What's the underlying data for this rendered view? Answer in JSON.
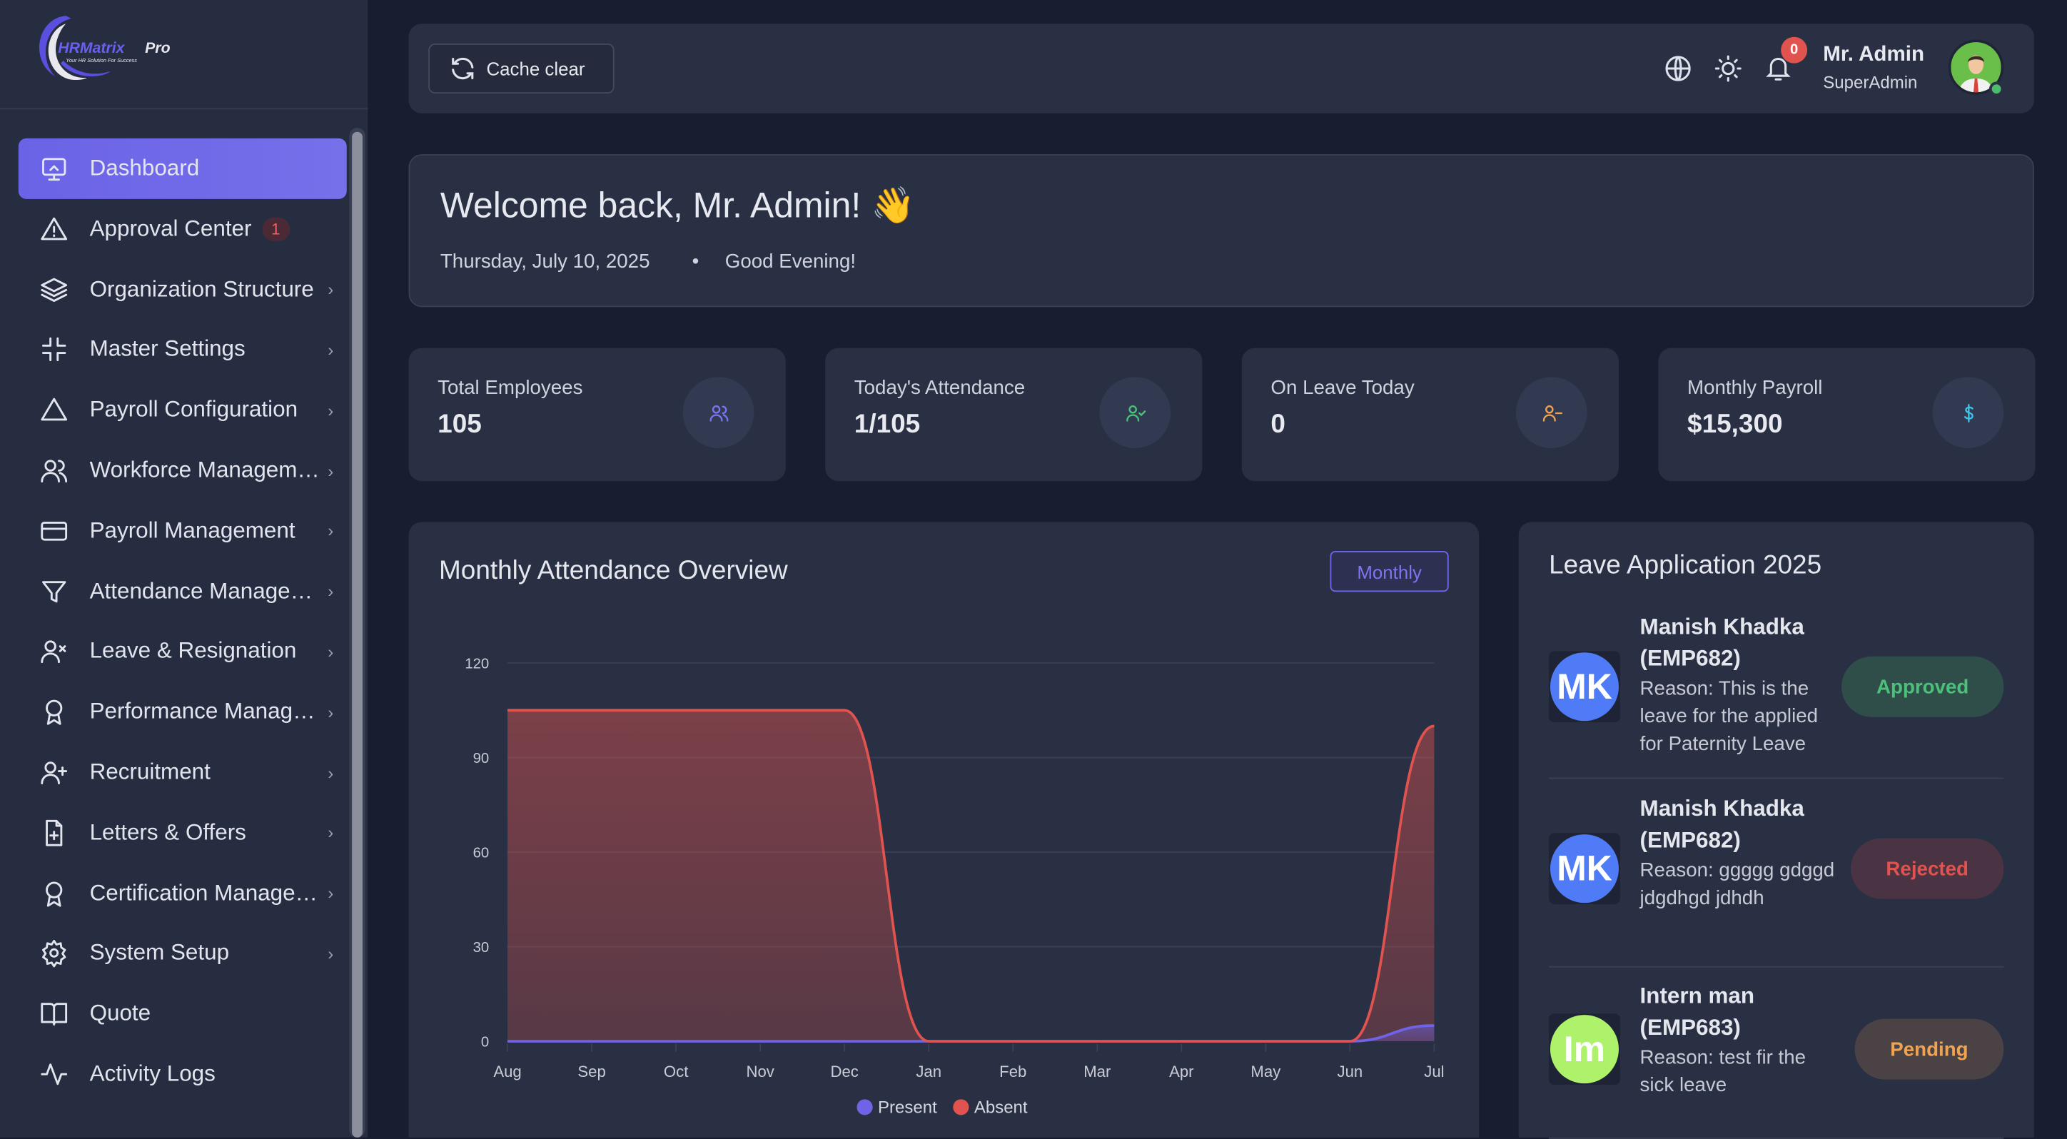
{
  "brand": {
    "name": "HRMatrix Pro",
    "tagline": "Your HR Solution For Success"
  },
  "sidebar": {
    "items": [
      {
        "label": "Dashboard",
        "icon": "monitor-icon",
        "active": true
      },
      {
        "label": "Approval Center",
        "icon": "warning-icon",
        "badge": "1"
      },
      {
        "label": "Organization Structure",
        "icon": "layers-icon",
        "chevron": true
      },
      {
        "label": "Master Settings",
        "icon": "shrink-icon",
        "chevron": true
      },
      {
        "label": "Payroll Configuration",
        "icon": "triangle-icon",
        "chevron": true
      },
      {
        "label": "Workforce Management",
        "icon": "users-icon",
        "chevron": true
      },
      {
        "label": "Payroll Management",
        "icon": "credit-card-icon",
        "chevron": true
      },
      {
        "label": "Attendance Management",
        "icon": "filter-icon",
        "chevron": true
      },
      {
        "label": "Leave & Resignation",
        "icon": "user-x-icon",
        "chevron": true
      },
      {
        "label": "Performance Management",
        "icon": "award-icon",
        "chevron": true
      },
      {
        "label": "Recruitment",
        "icon": "user-plus-icon",
        "chevron": true
      },
      {
        "label": "Letters & Offers",
        "icon": "file-plus-icon",
        "chevron": true
      },
      {
        "label": "Certification Management",
        "icon": "award-icon",
        "chevron": true
      },
      {
        "label": "System Setup",
        "icon": "gear-icon",
        "chevron": true
      },
      {
        "label": "Quote",
        "icon": "book-icon"
      },
      {
        "label": "Activity Logs",
        "icon": "activity-icon"
      }
    ]
  },
  "topbar": {
    "cache_label": "Cache clear",
    "notification_count": "0",
    "user_name": "Mr. Admin",
    "user_role": "SuperAdmin"
  },
  "welcome": {
    "title": "Welcome back, Mr. Admin! 👋",
    "date": "Thursday, July 10, 2025",
    "separator": "•",
    "greeting": "Good Evening!"
  },
  "stats": [
    {
      "label": "Total Employees",
      "value": "105",
      "color": "#7b74f0"
    },
    {
      "label": "Today's Attendance",
      "value": "1/105",
      "color": "#4cc17a"
    },
    {
      "label": "On Leave Today",
      "value": "0",
      "color": "#f0a350"
    },
    {
      "label": "Monthly Payroll",
      "value": "$15,300",
      "color": "#3fc3e6"
    }
  ],
  "chart_card": {
    "title": "Monthly Attendance Overview",
    "period_button": "Monthly"
  },
  "chart_data": {
    "type": "area",
    "title": "Monthly Attendance Overview",
    "categories": [
      "Aug",
      "Sep",
      "Oct",
      "Nov",
      "Dec",
      "Jan",
      "Feb",
      "Mar",
      "Apr",
      "May",
      "Jun",
      "Jul"
    ],
    "series": [
      {
        "name": "Present",
        "color": "#6f64e8",
        "values": [
          0,
          0,
          0,
          0,
          0,
          0,
          0,
          0,
          0,
          0,
          0,
          5
        ]
      },
      {
        "name": "Absent",
        "color": "#e0534f",
        "values": [
          105,
          105,
          105,
          105,
          105,
          0,
          0,
          0,
          0,
          0,
          0,
          100
        ]
      }
    ],
    "yticks": [
      "0",
      "30",
      "60",
      "90",
      "120"
    ],
    "ylim": [
      0,
      120
    ],
    "grid": true,
    "legend": "bottom-center"
  },
  "leave": {
    "title": "Leave Application 2025",
    "items": [
      {
        "initials": "MK",
        "avatar_color": "#4f7cf6",
        "name": "Manish Khadka (EMP682)",
        "reason": "Reason: This is the leave for the applied for Paternity Leave",
        "status": "Approved",
        "status_color": "#4cc17a",
        "status_bg": "#2f4e4a"
      },
      {
        "initials": "MK",
        "avatar_color": "#4f7cf6",
        "name": "Manish Khadka (EMP682)",
        "reason": "Reason: ggggg gdggd jdgdhgd jdhdh",
        "status": "Rejected",
        "status_color": "#e0534f",
        "status_bg": "#4a3343"
      },
      {
        "initials": "Im",
        "avatar_color": "#adf26a",
        "name": "Intern man (EMP683)",
        "reason": "Reason: test fir the sick leave",
        "status": "Pending",
        "status_color": "#f0a350",
        "status_bg": "#4a4245"
      }
    ]
  }
}
